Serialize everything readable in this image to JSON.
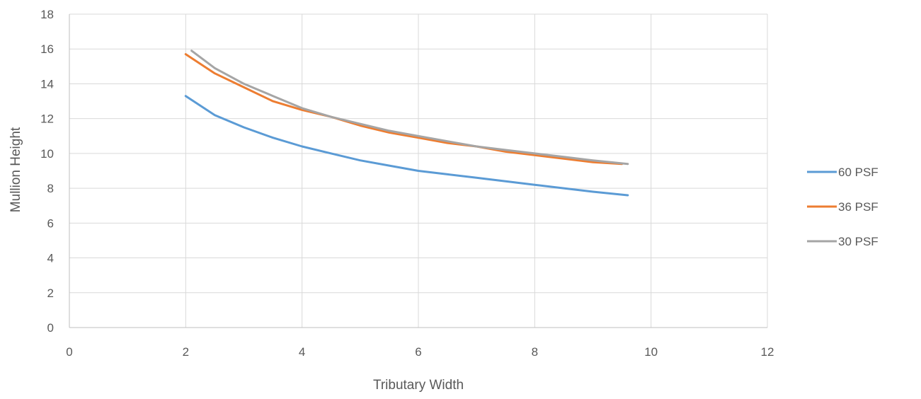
{
  "chart_data": {
    "type": "line",
    "title": "",
    "xlabel": "Tributary Width",
    "ylabel": "Mullion Height",
    "xlim": [
      0,
      12
    ],
    "ylim": [
      0,
      18
    ],
    "x_ticks": [
      0,
      2,
      4,
      6,
      8,
      10,
      12
    ],
    "y_ticks": [
      0,
      2,
      4,
      6,
      8,
      10,
      12,
      14,
      16,
      18
    ],
    "grid": true,
    "legend_position": "right",
    "series": [
      {
        "name": "60 PSF",
        "color": "#5B9BD5",
        "x": [
          2.0,
          2.5,
          3.0,
          3.5,
          4.0,
          4.5,
          5.0,
          5.5,
          6.0,
          6.5,
          7.0,
          7.5,
          8.0,
          8.5,
          9.0,
          9.6
        ],
        "y": [
          13.3,
          12.2,
          11.5,
          10.9,
          10.4,
          10.0,
          9.6,
          9.3,
          9.0,
          8.8,
          8.6,
          8.4,
          8.2,
          8.0,
          7.8,
          7.6
        ]
      },
      {
        "name": "36 PSF",
        "color": "#ED7D31",
        "x": [
          2.0,
          2.5,
          3.0,
          3.5,
          4.0,
          4.5,
          5.0,
          5.5,
          6.0,
          6.5,
          7.0,
          7.5,
          8.0,
          8.5,
          9.0,
          9.5
        ],
        "y": [
          15.7,
          14.6,
          13.8,
          13.0,
          12.5,
          12.1,
          11.6,
          11.2,
          10.9,
          10.6,
          10.4,
          10.1,
          9.9,
          9.7,
          9.5,
          9.4
        ]
      },
      {
        "name": "30 PSF",
        "color": "#A5A5A5",
        "x": [
          2.1,
          2.5,
          3.0,
          3.5,
          4.0,
          4.5,
          5.0,
          5.5,
          6.0,
          6.5,
          7.0,
          7.5,
          8.0,
          8.5,
          9.0,
          9.6
        ],
        "y": [
          15.9,
          14.9,
          14.0,
          13.3,
          12.6,
          12.1,
          11.7,
          11.3,
          11.0,
          10.7,
          10.4,
          10.2,
          10.0,
          9.8,
          9.6,
          9.4
        ]
      }
    ]
  }
}
